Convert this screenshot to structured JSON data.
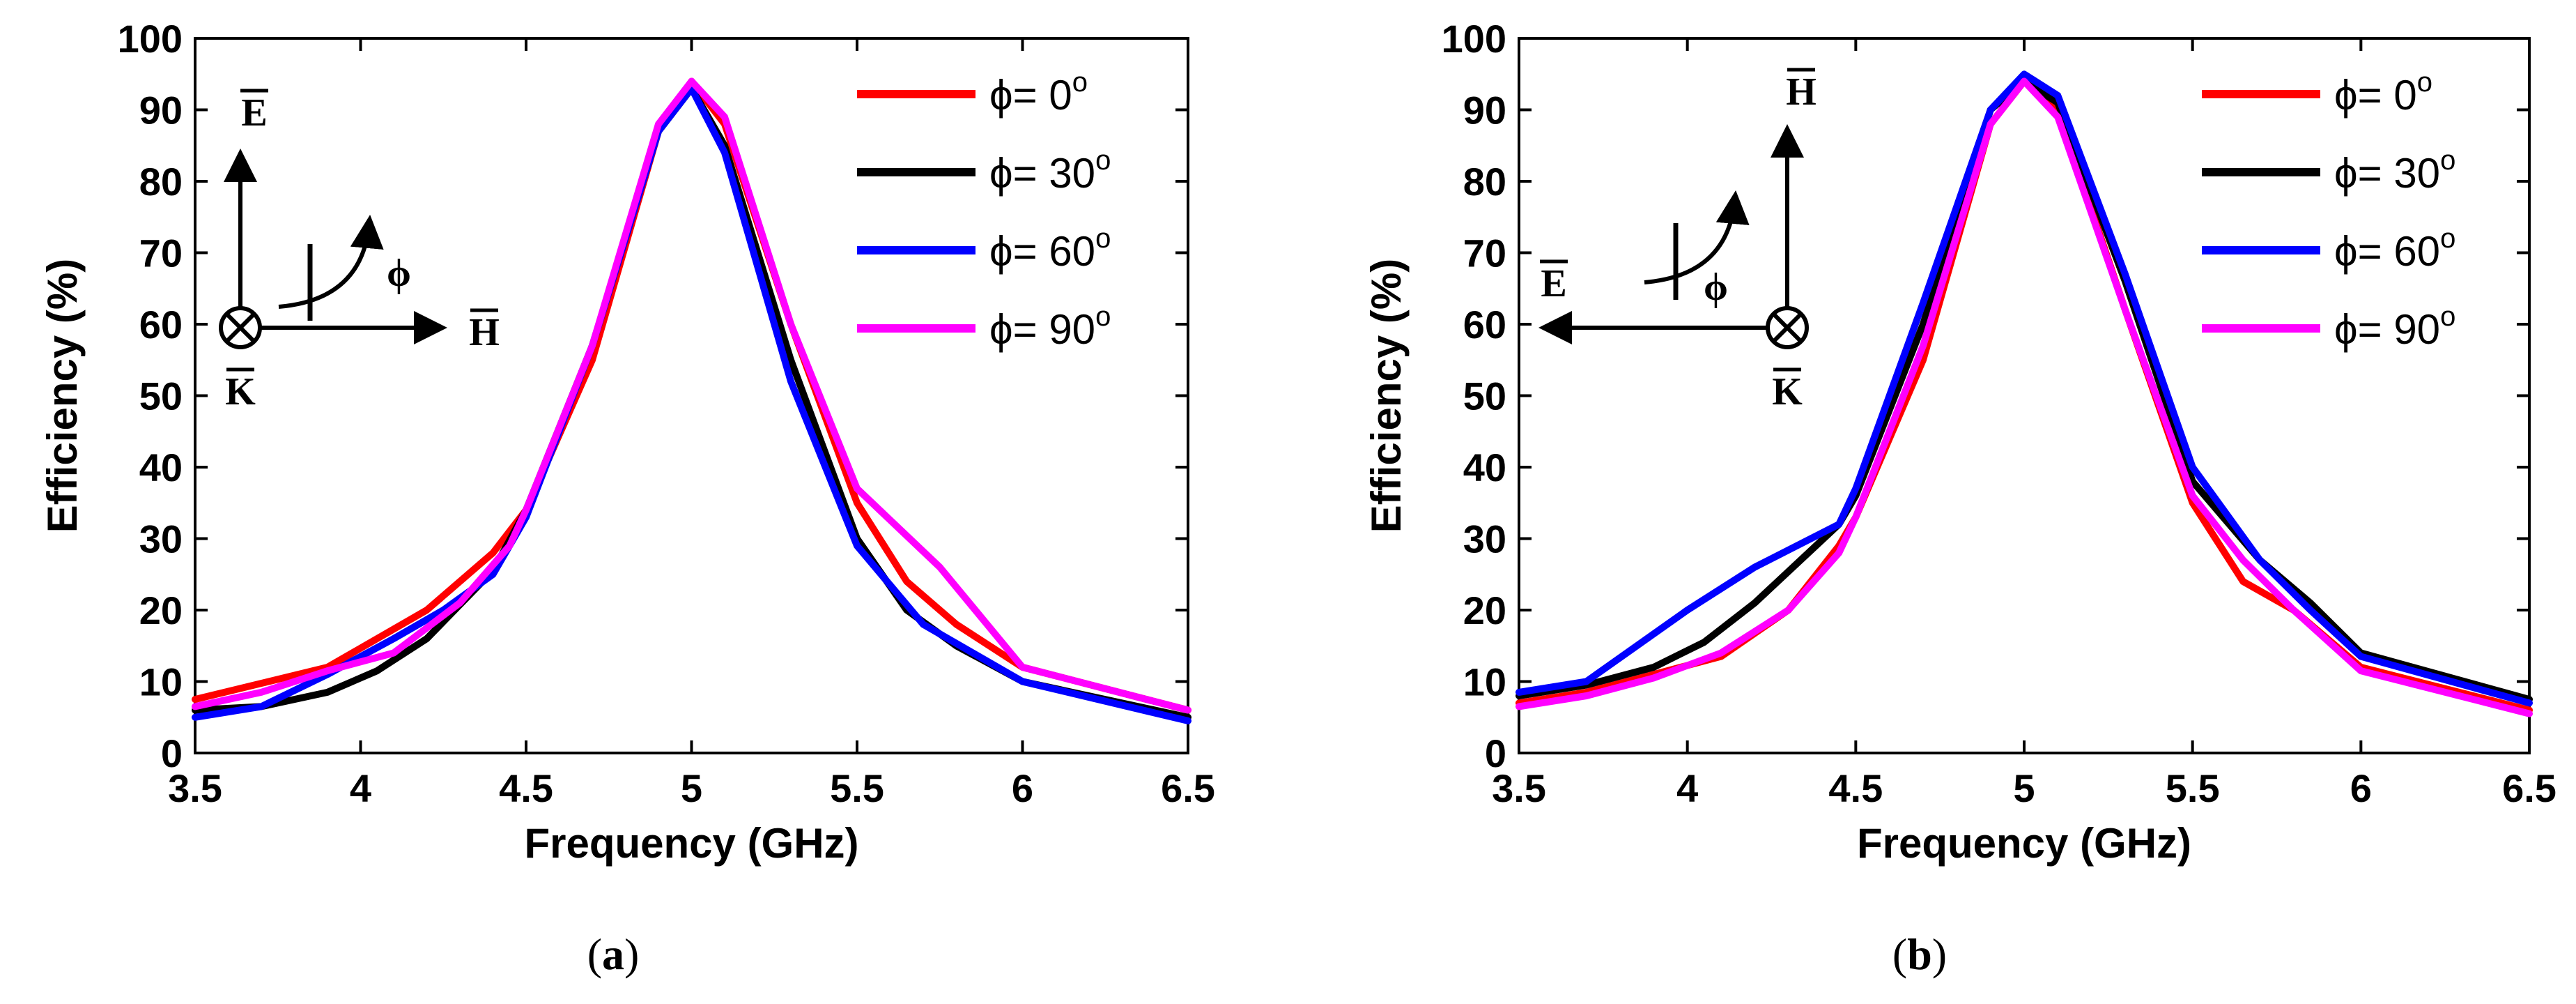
{
  "chart_data": [
    {
      "type": "line",
      "caption": "a",
      "xlabel": "Frequency (GHz)",
      "ylabel": "Efficiency (%)",
      "xlim": [
        3.5,
        6.5
      ],
      "ylim": [
        0,
        100
      ],
      "xticks": [
        "3.5",
        "4",
        "4.5",
        "5",
        "5.5",
        "6",
        "6.5"
      ],
      "yticks": [
        "0",
        "10",
        "20",
        "30",
        "40",
        "50",
        "60",
        "70",
        "80",
        "90",
        "100"
      ],
      "grid": false,
      "legend_position": "top-right",
      "inset": {
        "e": "E",
        "h": "H",
        "k": "K",
        "phi": "ϕ",
        "layout": "e-up-h-right"
      },
      "series": [
        {
          "name": "ϕ= 0",
          "color": "#ff0000",
          "x": [
            3.5,
            3.9,
            4.2,
            4.4,
            4.5,
            4.7,
            4.9,
            5.0,
            5.1,
            5.3,
            5.5,
            5.65,
            5.8,
            6.0,
            6.5
          ],
          "y": [
            7.5,
            12,
            20,
            28,
            34,
            55,
            87,
            94,
            88,
            60,
            35,
            24,
            18,
            12,
            6
          ]
        },
        {
          "name": "ϕ= 30",
          "color": "#000000",
          "x": [
            3.5,
            3.7,
            3.9,
            4.05,
            4.2,
            4.4,
            4.5,
            4.7,
            4.9,
            5.0,
            5.1,
            5.3,
            5.5,
            5.65,
            5.8,
            6.0,
            6.5
          ],
          "y": [
            6,
            6.5,
            8.5,
            11.5,
            16,
            25.5,
            34,
            57,
            87,
            93,
            85,
            55,
            30,
            20,
            15,
            10,
            5
          ]
        },
        {
          "name": "ϕ= 60",
          "color": "#0000ff",
          "x": [
            3.5,
            3.7,
            3.9,
            4.1,
            4.25,
            4.4,
            4.5,
            4.7,
            4.9,
            5.0,
            5.1,
            5.3,
            5.5,
            5.7,
            5.85,
            6.0,
            6.5
          ],
          "y": [
            5,
            6.5,
            11,
            16,
            20,
            25,
            33,
            57,
            87,
            93,
            84,
            52,
            29,
            18,
            14,
            10,
            4.5
          ]
        },
        {
          "name": "ϕ= 90",
          "color": "#ff00ff",
          "x": [
            3.5,
            3.7,
            3.9,
            4.1,
            4.3,
            4.45,
            4.5,
            4.7,
            4.9,
            5.0,
            5.1,
            5.3,
            5.5,
            5.75,
            6.0,
            6.5
          ],
          "y": [
            6.5,
            8.5,
            11.5,
            14,
            21,
            29,
            34,
            57,
            88,
            94,
            89,
            60,
            37,
            26,
            12,
            6
          ]
        }
      ]
    },
    {
      "type": "line",
      "caption": "b",
      "xlabel": "Frequency (GHz)",
      "ylabel": "Efficiency (%)",
      "xlim": [
        3.5,
        6.5
      ],
      "ylim": [
        0,
        100
      ],
      "xticks": [
        "3.5",
        "4",
        "4.5",
        "5",
        "5.5",
        "6",
        "6.5"
      ],
      "yticks": [
        "0",
        "10",
        "20",
        "30",
        "40",
        "50",
        "60",
        "70",
        "80",
        "90",
        "100"
      ],
      "grid": false,
      "legend_position": "top-right",
      "inset": {
        "e": "E",
        "h": "H",
        "k": "K",
        "phi": "ϕ",
        "layout": "h-up-e-left"
      },
      "series": [
        {
          "name": "ϕ= 0",
          "color": "#ff0000",
          "x": [
            3.5,
            3.7,
            3.9,
            4.1,
            4.3,
            4.45,
            4.5,
            4.7,
            4.9,
            5.0,
            5.1,
            5.3,
            5.5,
            5.65,
            5.8,
            6.0,
            6.5
          ],
          "y": [
            7,
            8.5,
            11,
            13.5,
            20,
            29,
            33,
            55,
            88,
            94,
            90,
            62,
            35,
            24,
            20,
            12,
            6
          ]
        },
        {
          "name": "ϕ= 30",
          "color": "#000000",
          "x": [
            3.5,
            3.7,
            3.9,
            4.05,
            4.2,
            4.45,
            4.5,
            4.7,
            4.9,
            5.0,
            5.1,
            5.3,
            5.5,
            5.7,
            5.85,
            6.0,
            6.5
          ],
          "y": [
            8,
            9.5,
            12,
            15.5,
            21,
            32,
            36,
            60,
            90,
            94,
            91,
            66,
            38,
            27,
            21,
            14,
            7.5
          ]
        },
        {
          "name": "ϕ= 60",
          "color": "#0000ff",
          "x": [
            3.5,
            3.7,
            4.0,
            4.2,
            4.45,
            4.5,
            4.7,
            4.9,
            5.0,
            5.1,
            5.3,
            5.5,
            5.7,
            5.85,
            6.0,
            6.5
          ],
          "y": [
            8.5,
            10,
            20,
            26,
            32,
            37,
            63,
            90,
            95,
            92,
            67,
            40,
            27,
            20,
            13.5,
            7
          ]
        },
        {
          "name": "ϕ= 90",
          "color": "#ff00ff",
          "x": [
            3.5,
            3.7,
            3.9,
            4.1,
            4.3,
            4.45,
            4.5,
            4.7,
            4.9,
            5.0,
            5.1,
            5.3,
            5.5,
            5.65,
            5.8,
            6.0,
            6.5
          ],
          "y": [
            6.5,
            8,
            10.5,
            14,
            20,
            28,
            33,
            57,
            88,
            94,
            89,
            62,
            36,
            27,
            20,
            11.5,
            5.5
          ]
        }
      ]
    }
  ]
}
